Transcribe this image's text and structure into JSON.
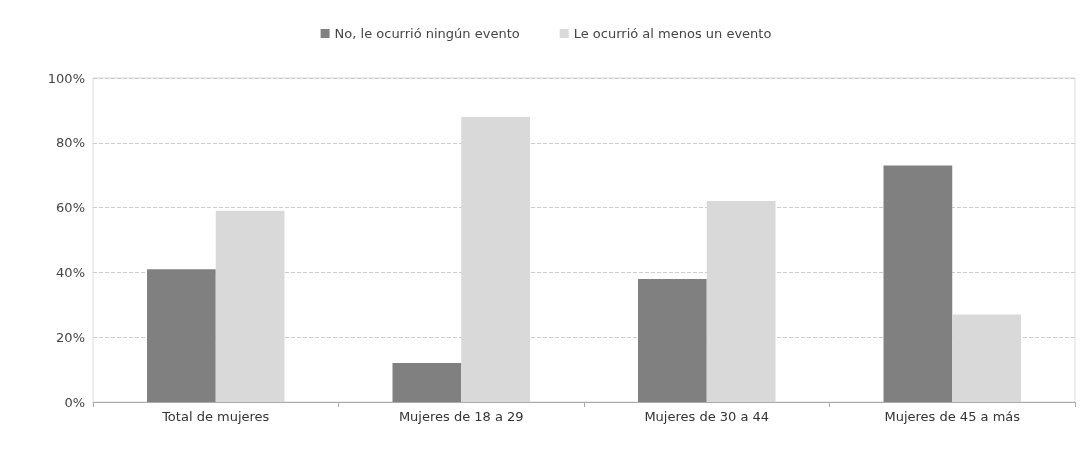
{
  "chart_data": {
    "type": "bar",
    "categories": [
      "Total de mujeres",
      "Mujeres de 18 a 29",
      "Mujeres de 30 a 44",
      "Mujeres de 45 a más"
    ],
    "series": [
      {
        "name": "No, le ocurrió ningún evento",
        "color": "#808080",
        "values": [
          41,
          12,
          38,
          73
        ]
      },
      {
        "name": "Le ocurrió al menos un evento",
        "color": "#d9d9d9",
        "values": [
          59,
          88,
          62,
          27
        ]
      }
    ],
    "ylim": [
      0,
      100
    ],
    "yticks": [
      {
        "value": 0,
        "label": "0%"
      },
      {
        "value": 20,
        "label": "20%"
      },
      {
        "value": 40,
        "label": "40%"
      },
      {
        "value": 60,
        "label": "60%"
      },
      {
        "value": 80,
        "label": "80%"
      },
      {
        "value": 100,
        "label": "100%"
      }
    ],
    "grid": "y",
    "legend": "top"
  }
}
